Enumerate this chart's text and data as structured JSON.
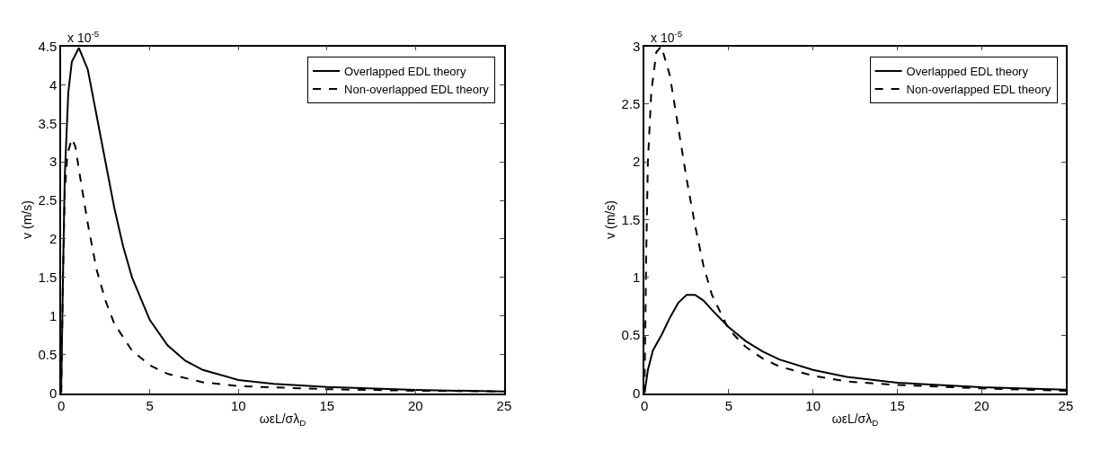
{
  "chart_data": [
    {
      "type": "line",
      "xlabel": "ωεL/σλ$_{D}$",
      "ylabel": "v (m/s)",
      "annotations": [
        "x 10$^{-5}$"
      ],
      "xlim": [
        0,
        25
      ],
      "xticks": [
        0,
        5,
        10,
        15,
        20,
        25
      ],
      "ylim": [
        0,
        4.5
      ],
      "yticks": [
        0,
        0.5,
        1,
        1.5,
        2,
        2.5,
        3,
        3.5,
        4,
        4.5
      ],
      "legend": "top right",
      "marker": "none",
      "series": [
        {
          "name": "Overlapped EDL theory",
          "color": "#000000",
          "line_style": "solid",
          "x": [
            0,
            0.1,
            0.2,
            0.4,
            0.6,
            1,
            1.5,
            2,
            2.5,
            3,
            3.5,
            4,
            5,
            6,
            7,
            8,
            10,
            12,
            15,
            20,
            25
          ],
          "values": [
            0,
            1.5,
            2.8,
            3.9,
            4.3,
            4.48,
            4.2,
            3.6,
            3.0,
            2.4,
            1.9,
            1.5,
            0.95,
            0.62,
            0.42,
            0.3,
            0.17,
            0.12,
            0.08,
            0.04,
            0.02
          ]
        },
        {
          "name": "Non-overlapped EDL theory",
          "color": "#000000",
          "line_style": "dashed",
          "x": [
            0,
            0.1,
            0.2,
            0.35,
            0.6,
            0.8,
            1,
            1.5,
            2,
            2.5,
            3,
            4,
            5,
            6,
            8,
            10,
            15,
            20,
            25
          ],
          "values": [
            0,
            1.5,
            2.6,
            3.1,
            3.3,
            3.2,
            2.9,
            2.2,
            1.6,
            1.2,
            0.9,
            0.55,
            0.36,
            0.25,
            0.14,
            0.09,
            0.05,
            0.03,
            0.02
          ]
        }
      ]
    },
    {
      "type": "line",
      "xlabel": "ωεL/σλ$_{D}$",
      "ylabel": "v (m/s)",
      "annotations": [
        "x 10$^{-5}$"
      ],
      "xlim": [
        0,
        25
      ],
      "xticks": [
        0,
        5,
        10,
        15,
        20,
        25
      ],
      "ylim": [
        0,
        3
      ],
      "yticks": [
        0,
        0.5,
        1,
        1.5,
        2,
        2.5,
        3
      ],
      "legend": "top right",
      "marker": "none",
      "series": [
        {
          "name": "Overlapped EDL theory",
          "color": "#000000",
          "line_style": "solid",
          "x": [
            0,
            0.2,
            0.5,
            1,
            1.5,
            2,
            2.5,
            3,
            3.5,
            4,
            5,
            6,
            7,
            8,
            10,
            12,
            15,
            20,
            25
          ],
          "values": [
            0,
            0.2,
            0.37,
            0.5,
            0.65,
            0.78,
            0.85,
            0.85,
            0.8,
            0.72,
            0.57,
            0.45,
            0.36,
            0.29,
            0.2,
            0.14,
            0.09,
            0.05,
            0.03
          ]
        },
        {
          "name": "Non-overlapped EDL theory",
          "color": "#000000",
          "line_style": "dashed",
          "x": [
            0,
            0.1,
            0.2,
            0.4,
            0.7,
            1,
            1.5,
            2,
            2.5,
            3,
            3.5,
            4,
            5,
            6,
            7,
            8,
            10,
            12,
            15,
            20,
            25
          ],
          "values": [
            0,
            1.2,
            2.0,
            2.6,
            2.95,
            3.0,
            2.75,
            2.3,
            1.85,
            1.45,
            1.1,
            0.85,
            0.55,
            0.4,
            0.3,
            0.23,
            0.15,
            0.1,
            0.07,
            0.04,
            0.02
          ]
        }
      ]
    }
  ]
}
